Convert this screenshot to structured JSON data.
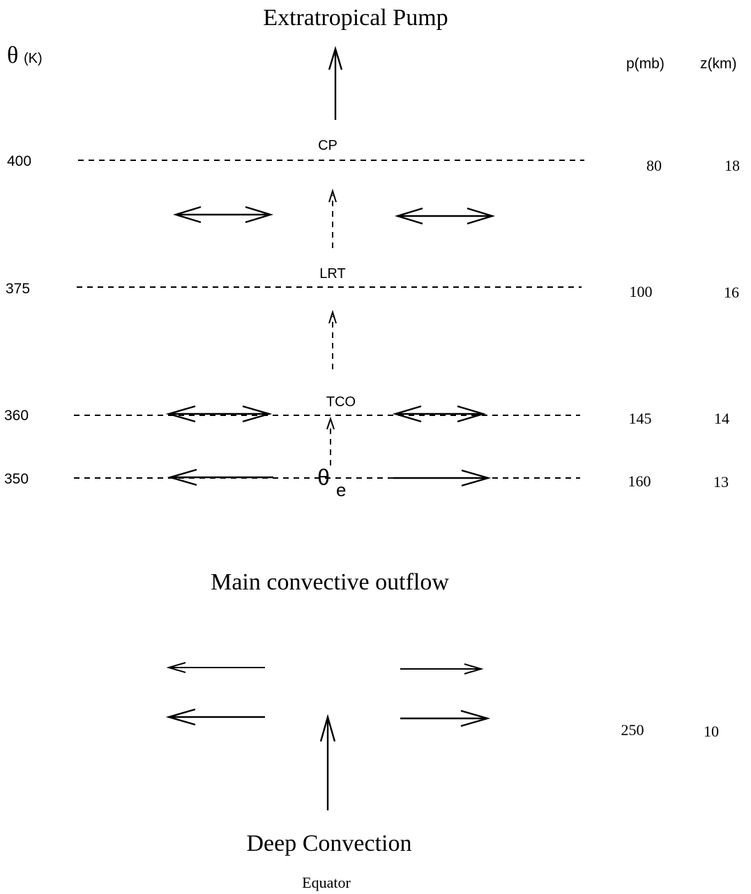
{
  "title": "Extratropical Pump",
  "axes": {
    "theta_header": "θ",
    "theta_unit": "(K)",
    "pressure_header": "p(mb)",
    "altitude_header": "z(km)"
  },
  "levels": [
    {
      "theta": "400",
      "label": "CP",
      "pressure": "80",
      "altitude": "18"
    },
    {
      "theta": "375",
      "label": "LRT",
      "pressure": "100",
      "altitude": "16"
    },
    {
      "theta": "360",
      "label": "TCO",
      "pressure": "145",
      "altitude": "14"
    },
    {
      "theta": "350",
      "label": "θ",
      "label_sub": "e",
      "pressure": "160",
      "altitude": "13"
    }
  ],
  "outflow": {
    "label": "Main convective outflow",
    "pressure": "250",
    "altitude": "10"
  },
  "source_label": "Deep Convection",
  "location_label": "Equator"
}
